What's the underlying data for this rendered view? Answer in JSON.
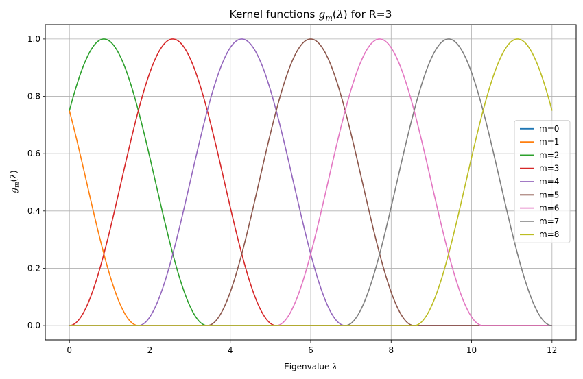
{
  "chart_data": {
    "type": "line",
    "title": {
      "prefix": "Kernel functions ",
      "var": "g",
      "sub": "m",
      "arg": "λ",
      "suffix": " for R=3"
    },
    "xlabel": {
      "text": "Eigenvalue ",
      "var": "λ"
    },
    "ylabel": {
      "var": "g",
      "sub": "m",
      "arg": "λ"
    },
    "xlim": [
      -0.6,
      12.6
    ],
    "ylim": [
      -0.05,
      1.05
    ],
    "xticks": [
      0,
      2,
      4,
      6,
      8,
      10,
      12
    ],
    "yticks": [
      0.0,
      0.2,
      0.4,
      0.6,
      0.8,
      1.0
    ],
    "xtick_labels": [
      "0",
      "2",
      "4",
      "6",
      "8",
      "10",
      "12"
    ],
    "ytick_labels": [
      "0.0",
      "0.2",
      "0.4",
      "0.6",
      "0.8",
      "1.0"
    ],
    "grid": true,
    "legend": "center-right",
    "kernel": {
      "form": "half-cosine squared bump of width 2*R*a, centered at a*(m-R+1)",
      "R": 3,
      "a": 1.7142857,
      "samples": 400
    },
    "series": [
      {
        "name": "m=0",
        "m": 0,
        "color": "#1f77b4"
      },
      {
        "name": "m=1",
        "m": 1,
        "color": "#ff7f0e"
      },
      {
        "name": "m=2",
        "m": 2,
        "color": "#2ca02c"
      },
      {
        "name": "m=3",
        "m": 3,
        "color": "#d62728"
      },
      {
        "name": "m=4",
        "m": 4,
        "color": "#9467bd"
      },
      {
        "name": "m=5",
        "m": 5,
        "color": "#8c564b"
      },
      {
        "name": "m=6",
        "m": 6,
        "color": "#e377c2"
      },
      {
        "name": "m=7",
        "m": 7,
        "color": "#7f7f7f"
      },
      {
        "name": "m=8",
        "m": 8,
        "color": "#bcbd22"
      }
    ]
  }
}
